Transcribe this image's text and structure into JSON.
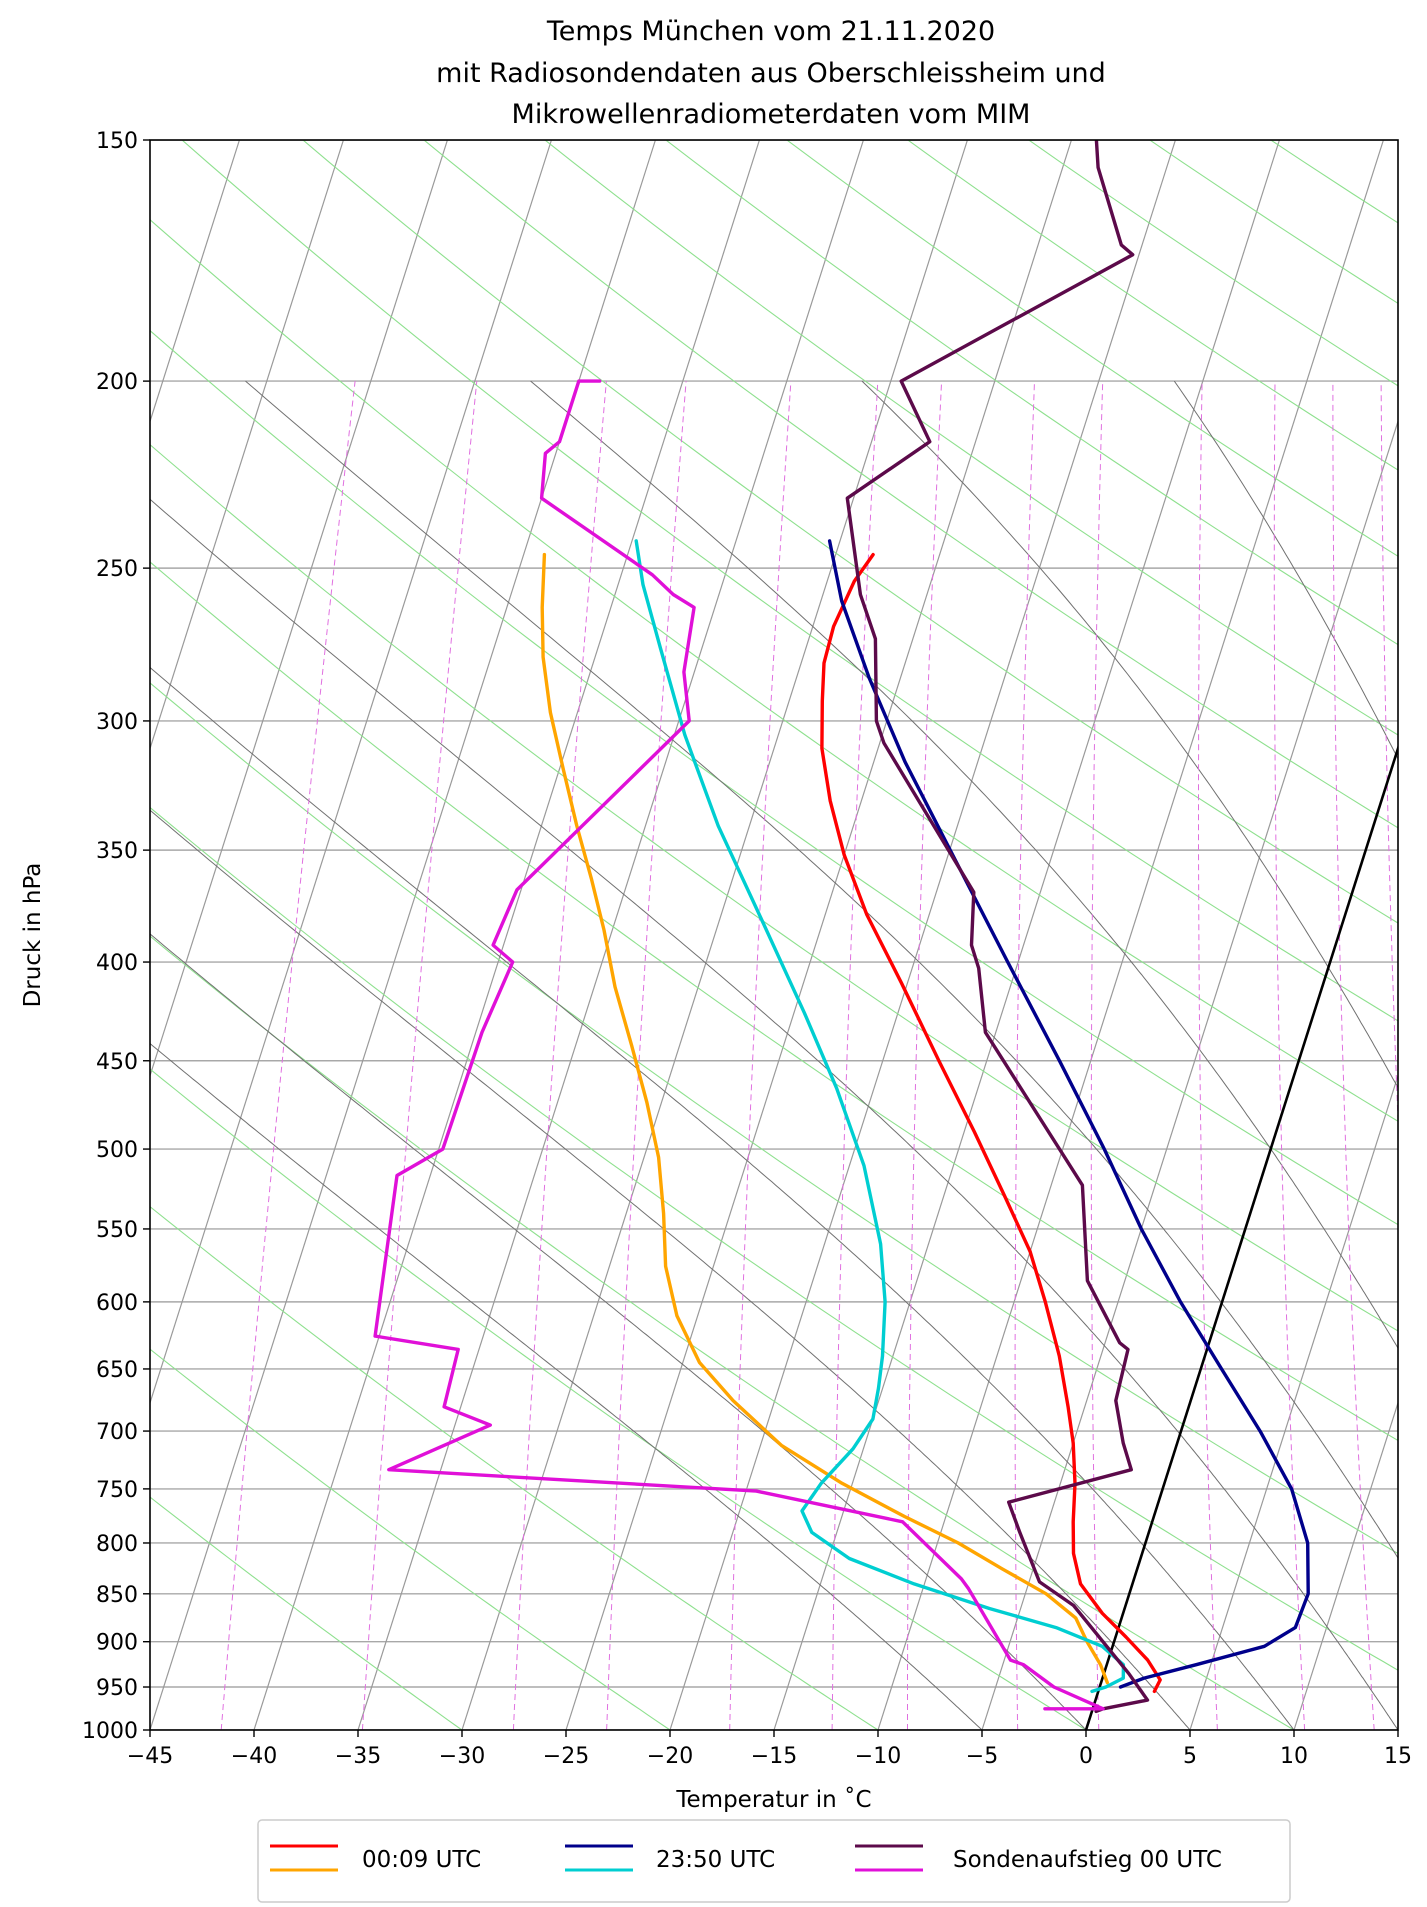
{
  "chart_data": {
    "type": "line",
    "subtype": "skew-T log-p diagram",
    "title_lines": [
      "Temps München vom 21.11.2020",
      "mit Radiosondendaten aus Oberschleissheim und",
      "Mikrowellenradiometerdaten vom MIM"
    ],
    "xlabel": "Temperatur in $^\\circ$C",
    "xlabel_display": "Temperatur in ˚C",
    "ylabel": "Druck in hPa",
    "xlim": [
      -45,
      15
    ],
    "ylim": [
      1000,
      150
    ],
    "y_scale": "log",
    "x_ticks": [
      -45,
      -40,
      -35,
      -30,
      -25,
      -20,
      -15,
      -10,
      -5,
      0,
      5,
      10,
      15
    ],
    "x_tick_labels": [
      "−45",
      "−40",
      "−35",
      "−30",
      "−25",
      "−20",
      "−15",
      "−10",
      "−5",
      "0",
      "5",
      "10",
      "15"
    ],
    "y_ticks": [
      1000,
      950,
      900,
      850,
      800,
      750,
      700,
      650,
      600,
      550,
      500,
      450,
      400,
      350,
      300,
      250,
      200,
      150
    ],
    "grid": true,
    "legend": {
      "placement": "bottom-center, below axes",
      "entries": [
        {
          "label": "00:09 UTC",
          "colors": [
            "#ff0000",
            "#ffa500"
          ]
        },
        {
          "label": "23:50 UTC",
          "colors": [
            "#00008b",
            "#00ced1"
          ]
        },
        {
          "label": "Sondenaufstieg 00 UTC",
          "colors": [
            "#5c0a4a",
            "#e010d8"
          ]
        }
      ]
    },
    "series": [
      {
        "legend_entry": "00:09 UTC",
        "variable": "temperature",
        "color": "#ff0000",
        "points": [
          [
            -28.2,
            246
          ],
          [
            -28.7,
            254
          ],
          [
            -29,
            268
          ],
          [
            -28.9,
            280
          ],
          [
            -28.4,
            293
          ],
          [
            -27.7,
            310
          ],
          [
            -26.5,
            330
          ],
          [
            -25,
            352
          ],
          [
            -23,
            378
          ],
          [
            -20.3,
            410
          ],
          [
            -17.3,
            450
          ],
          [
            -14.5,
            490
          ],
          [
            -12,
            530
          ],
          [
            -10,
            565
          ],
          [
            -8.5,
            600
          ],
          [
            -7,
            640
          ],
          [
            -5.8,
            680
          ],
          [
            -5,
            710
          ],
          [
            -4.3,
            745
          ],
          [
            -3.8,
            780
          ],
          [
            -3.3,
            810
          ],
          [
            -2.5,
            840
          ],
          [
            -1,
            870
          ],
          [
            0.5,
            895
          ],
          [
            1.9,
            920
          ],
          [
            2.8,
            942
          ],
          [
            2.7,
            955
          ]
        ]
      },
      {
        "legend_entry": "00:09 UTC",
        "variable": "dewpoint",
        "color": "#ffa500",
        "points": [
          [
            -44,
            246
          ],
          [
            -43.3,
            262
          ],
          [
            -42.5,
            278
          ],
          [
            -41.3,
            297
          ],
          [
            -39.8,
            318
          ],
          [
            -38.3,
            340
          ],
          [
            -36.8,
            362
          ],
          [
            -35.4,
            385
          ],
          [
            -34,
            412
          ],
          [
            -32.3,
            442
          ],
          [
            -30.7,
            473
          ],
          [
            -29.3,
            505
          ],
          [
            -28.2,
            540
          ],
          [
            -27.3,
            575
          ],
          [
            -26,
            610
          ],
          [
            -24.2,
            645
          ],
          [
            -22,
            675
          ],
          [
            -19,
            712
          ],
          [
            -15.5,
            745
          ],
          [
            -12,
            775
          ],
          [
            -9,
            800
          ],
          [
            -6.5,
            825
          ],
          [
            -4,
            850
          ],
          [
            -2.2,
            875
          ],
          [
            -1.3,
            900
          ],
          [
            -0.3,
            925
          ],
          [
            0.3,
            945
          ]
        ]
      },
      {
        "legend_entry": "23:50 UTC",
        "variable": "temperature",
        "color": "#00008b",
        "points": [
          [
            -30.5,
            242
          ],
          [
            -29,
            260
          ],
          [
            -26.5,
            285
          ],
          [
            -23.5,
            315
          ],
          [
            -19.5,
            355
          ],
          [
            -15.5,
            400
          ],
          [
            -11.5,
            450
          ],
          [
            -8,
            500
          ],
          [
            -5,
            550
          ],
          [
            -2,
            600
          ],
          [
            1,
            650
          ],
          [
            3.8,
            700
          ],
          [
            6.2,
            750
          ],
          [
            7.8,
            800
          ],
          [
            8.6,
            850
          ],
          [
            8.5,
            885
          ],
          [
            7.3,
            905
          ],
          [
            4.3,
            925
          ],
          [
            2,
            940
          ],
          [
            1,
            950
          ]
        ]
      },
      {
        "legend_entry": "23:50 UTC",
        "variable": "dewpoint",
        "color": "#00ced1",
        "points": [
          [
            -39.8,
            242
          ],
          [
            -38.8,
            255
          ],
          [
            -37,
            275
          ],
          [
            -34.5,
            305
          ],
          [
            -31.5,
            340
          ],
          [
            -28,
            380
          ],
          [
            -24.5,
            425
          ],
          [
            -21.8,
            465
          ],
          [
            -19.3,
            510
          ],
          [
            -17.3,
            560
          ],
          [
            -16.2,
            600
          ],
          [
            -15.5,
            640
          ],
          [
            -15.2,
            665
          ],
          [
            -15,
            690
          ],
          [
            -15.5,
            715
          ],
          [
            -16.5,
            745
          ],
          [
            -17,
            770
          ],
          [
            -16.2,
            790
          ],
          [
            -14,
            815
          ],
          [
            -10.5,
            840
          ],
          [
            -6.5,
            865
          ],
          [
            -3,
            885
          ],
          [
            -0.5,
            905
          ],
          [
            0.8,
            925
          ],
          [
            1,
            940
          ],
          [
            0.3,
            950
          ],
          [
            -0.3,
            955
          ]
        ]
      },
      {
        "legend_entry": "Sondenaufstieg 00 UTC",
        "variable": "temperature",
        "color": "#5c0a4a",
        "points": [
          [
            -23.8,
            150
          ],
          [
            -23.3,
            155
          ],
          [
            -21,
            170
          ],
          [
            -20.3,
            172
          ],
          [
            -29.5,
            200
          ],
          [
            -27.2,
            215
          ],
          [
            -30.3,
            230
          ],
          [
            -28.2,
            258
          ],
          [
            -26.8,
            272
          ],
          [
            -25.5,
            300
          ],
          [
            -24.8,
            308
          ],
          [
            -18.2,
            368
          ],
          [
            -17.5,
            392
          ],
          [
            -16.8,
            403
          ],
          [
            -15.5,
            435
          ],
          [
            -8.5,
            522
          ],
          [
            -6.8,
            585
          ],
          [
            -4.3,
            630
          ],
          [
            -3.8,
            635
          ],
          [
            -3.6,
            675
          ],
          [
            -2.6,
            710
          ],
          [
            -1.8,
            733
          ],
          [
            -7.2,
            762
          ],
          [
            -6.2,
            790
          ],
          [
            -4.5,
            838
          ],
          [
            -2.5,
            862
          ],
          [
            1.2,
            935
          ],
          [
            2.5,
            965
          ],
          [
            0.5,
            975
          ],
          [
            0.2,
            978
          ]
        ]
      },
      {
        "legend_entry": "Sondenaufstieg 00 UTC",
        "variable": "dewpoint",
        "color": "#e010d8",
        "points": [
          [
            -44,
            200
          ],
          [
            -45,
            200
          ],
          [
            -45,
            215
          ],
          [
            -45.5,
            218
          ],
          [
            -45,
            230
          ],
          [
            -38.5,
            252
          ],
          [
            -37.2,
            258
          ],
          [
            -36,
            262
          ],
          [
            -35.5,
            283
          ],
          [
            -34.5,
            300
          ],
          [
            -40.2,
            367
          ],
          [
            -40.5,
            392
          ],
          [
            -39.3,
            400
          ],
          [
            -39.7,
            435
          ],
          [
            -39.8,
            500
          ],
          [
            -41.6,
            516
          ],
          [
            -40.2,
            625
          ],
          [
            -36,
            635
          ],
          [
            -35.8,
            680
          ],
          [
            -33.3,
            695
          ],
          [
            -37.5,
            733
          ],
          [
            -19.5,
            752
          ],
          [
            -12,
            780
          ],
          [
            -8.3,
            835
          ],
          [
            -7.8,
            845
          ],
          [
            -4.7,
            920
          ],
          [
            -4,
            925
          ],
          [
            -2.2,
            950
          ],
          [
            0.5,
            975
          ],
          [
            -2.3,
            975
          ]
        ]
      }
    ]
  }
}
